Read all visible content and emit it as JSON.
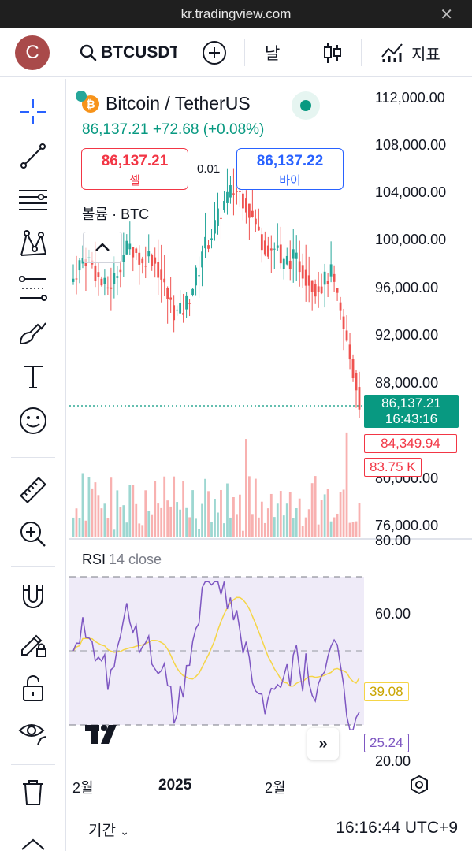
{
  "browser": {
    "url": "kr.tradingview.com",
    "close_icon": "close-icon"
  },
  "toolbar": {
    "avatar_letter": "C",
    "symbol": "BTCUSDT",
    "interval": "날",
    "indicators_label": "지표"
  },
  "legend": {
    "title": "Bitcoin / TetherUS",
    "price": "86,137.21",
    "change": "+72.68 (+0.08%)",
    "sell_price": "86,137.21",
    "sell_label": "셀",
    "spread": "0.01",
    "buy_price": "86,137.22",
    "buy_label": "바이",
    "volume_label": "볼륨 · BTC"
  },
  "price_axis": {
    "ticks": [
      "112,000.00",
      "108,000.00",
      "104,000.00",
      "100,000.00",
      "96,000.00",
      "92,000.00",
      "88,000.00",
      "80,000.00",
      "76,000.00"
    ],
    "current_price": "86,137.21",
    "countdown": "16:43:16",
    "low_price": "84,349.94",
    "volume_value": "83.75 K"
  },
  "rsi": {
    "label": "RSI",
    "params": "14 close",
    "ticks": [
      "80.00",
      "60.00",
      "20.00"
    ],
    "ma_value": "39.08",
    "rsi_value": "25.24"
  },
  "time_axis": {
    "labels": [
      "2월",
      "2025",
      "2월"
    ]
  },
  "bottom": {
    "period_label": "기간",
    "clock": "16:16:44 UTC+9"
  },
  "colors": {
    "up": "#26a69a",
    "down": "#ef5350",
    "rsi": "#7e57c2",
    "rsi_ma": "#fdd835",
    "accent": "#2962ff"
  }
}
